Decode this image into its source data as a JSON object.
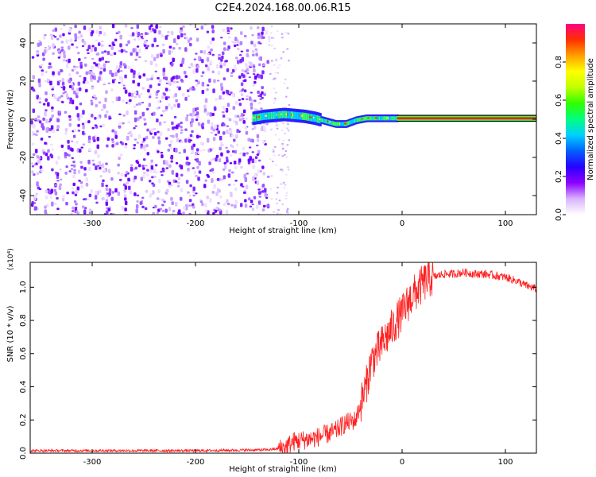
{
  "title": "C2E4.2024.168.00.06.R15",
  "chart_data": [
    {
      "type": "heatmap",
      "xlabel": "Height of straight line (km)",
      "ylabel": "Frequency (Hz)",
      "xlim": [
        -360,
        130
      ],
      "ylim": [
        -50,
        50
      ],
      "xticks": [
        -300,
        -200,
        -100,
        0,
        100
      ],
      "yticks": [
        -40,
        -20,
        0,
        20,
        40
      ],
      "noise_region_x": [
        -360,
        -130
      ],
      "sparse_region_x": [
        -130,
        -110
      ],
      "signal_track": {
        "x": [
          -145,
          -135,
          -125,
          -115,
          -105,
          -95,
          -85,
          -75,
          -65,
          -55,
          -45,
          -35,
          -25,
          -15,
          -5,
          10,
          40,
          80,
          130
        ],
        "y": [
          0.5,
          1.5,
          2.0,
          2.5,
          2.0,
          1.5,
          0.5,
          -1.0,
          -2.5,
          -2.5,
          -0.5,
          0.5,
          0.5,
          0.5,
          0.5,
          0.5,
          0.5,
          0.5,
          0.5
        ]
      },
      "colorbar": {
        "label": "Normalized spectral amplitude",
        "range": [
          0,
          1
        ],
        "ticks": [
          "0.0",
          "0.2",
          "0.4",
          "0.6",
          "0.8"
        ],
        "colors": [
          "#ffffff",
          "#d9b3ff",
          "#8c00ff",
          "#2a00ff",
          "#0060ff",
          "#00d0ff",
          "#00ff80",
          "#30ff00",
          "#c0ff00",
          "#ffff00",
          "#ffa000",
          "#ff3000",
          "#ff0080"
        ]
      }
    },
    {
      "type": "line",
      "xlabel": "Height of straight line (km)",
      "ylabel": "SNR (10 * v/v)",
      "yscale_label": "(x10⁴)",
      "xlim": [
        -360,
        130
      ],
      "ylim": [
        0,
        1.15
      ],
      "xticks": [
        -300,
        -200,
        -100,
        0,
        100
      ],
      "yticks": [
        "0.0",
        "0.2",
        "0.4",
        "0.6",
        "0.8",
        "1.0"
      ],
      "color": "#ff2020",
      "series": [
        {
          "x": [
            -360,
            -300,
            -200,
            -130,
            -115,
            -105,
            -95,
            -85,
            -75,
            -65,
            -55,
            -45,
            -40,
            -35,
            -30,
            -25,
            -20,
            -15,
            -10,
            -5,
            0,
            5,
            10,
            15,
            20,
            25,
            30,
            35,
            40,
            50,
            60,
            70,
            80,
            90,
            100,
            110,
            120,
            130
          ],
          "y": [
            0.015,
            0.015,
            0.015,
            0.02,
            0.03,
            0.07,
            0.08,
            0.09,
            0.11,
            0.13,
            0.18,
            0.2,
            0.3,
            0.4,
            0.55,
            0.6,
            0.65,
            0.7,
            0.75,
            0.8,
            0.84,
            0.9,
            0.95,
            0.98,
            1.02,
            1.05,
            1.06,
            1.07,
            1.08,
            1.08,
            1.09,
            1.08,
            1.08,
            1.07,
            1.06,
            1.04,
            1.01,
            0.99
          ]
        }
      ]
    }
  ]
}
